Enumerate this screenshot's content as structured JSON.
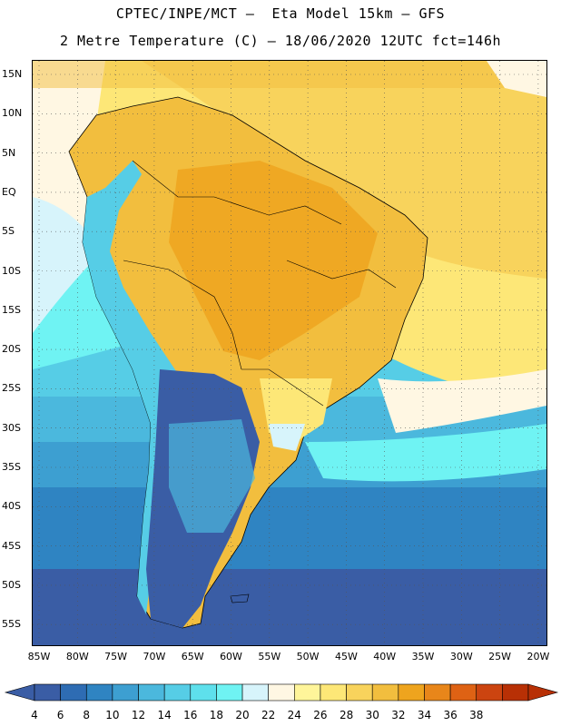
{
  "header": {
    "title_line1": "CPTEC/INPE/MCT —  Eta Model 15km — GFS",
    "title_line2": "2 Metre Temperature (C) — 18/06/2020 12UTC fct=146h"
  },
  "map": {
    "region": "South America",
    "lat_labels": [
      "15N",
      "10N",
      "5N",
      "EQ",
      "5S",
      "10S",
      "15S",
      "20S",
      "25S",
      "30S",
      "35S",
      "40S",
      "45S",
      "50S",
      "55S"
    ],
    "lon_labels": [
      "85W",
      "80W",
      "75W",
      "70W",
      "65W",
      "60W",
      "55W",
      "50W",
      "45W",
      "40W",
      "35W",
      "30W",
      "25W",
      "20W"
    ],
    "grid": "dotted"
  },
  "legend": {
    "labels": [
      "4",
      "6",
      "8",
      "10",
      "12",
      "14",
      "16",
      "18",
      "20",
      "22",
      "24",
      "26",
      "28",
      "30",
      "32",
      "34",
      "36",
      "38"
    ],
    "colors": [
      "#3a5da5",
      "#2e6cb3",
      "#2f84c2",
      "#3d9fd1",
      "#4bb8dd",
      "#56cde6",
      "#5ee0ec",
      "#6ff3f3",
      "#d7f4fb",
      "#fff7e3",
      "#fff59a",
      "#fde777",
      "#f8d35c",
      "#f2be3e",
      "#eea41e",
      "#e8861a",
      "#de6214",
      "#cc4410",
      "#b83005"
    ],
    "low_arrow_color": "#3a5da5",
    "high_arrow_color": "#b83005"
  }
}
